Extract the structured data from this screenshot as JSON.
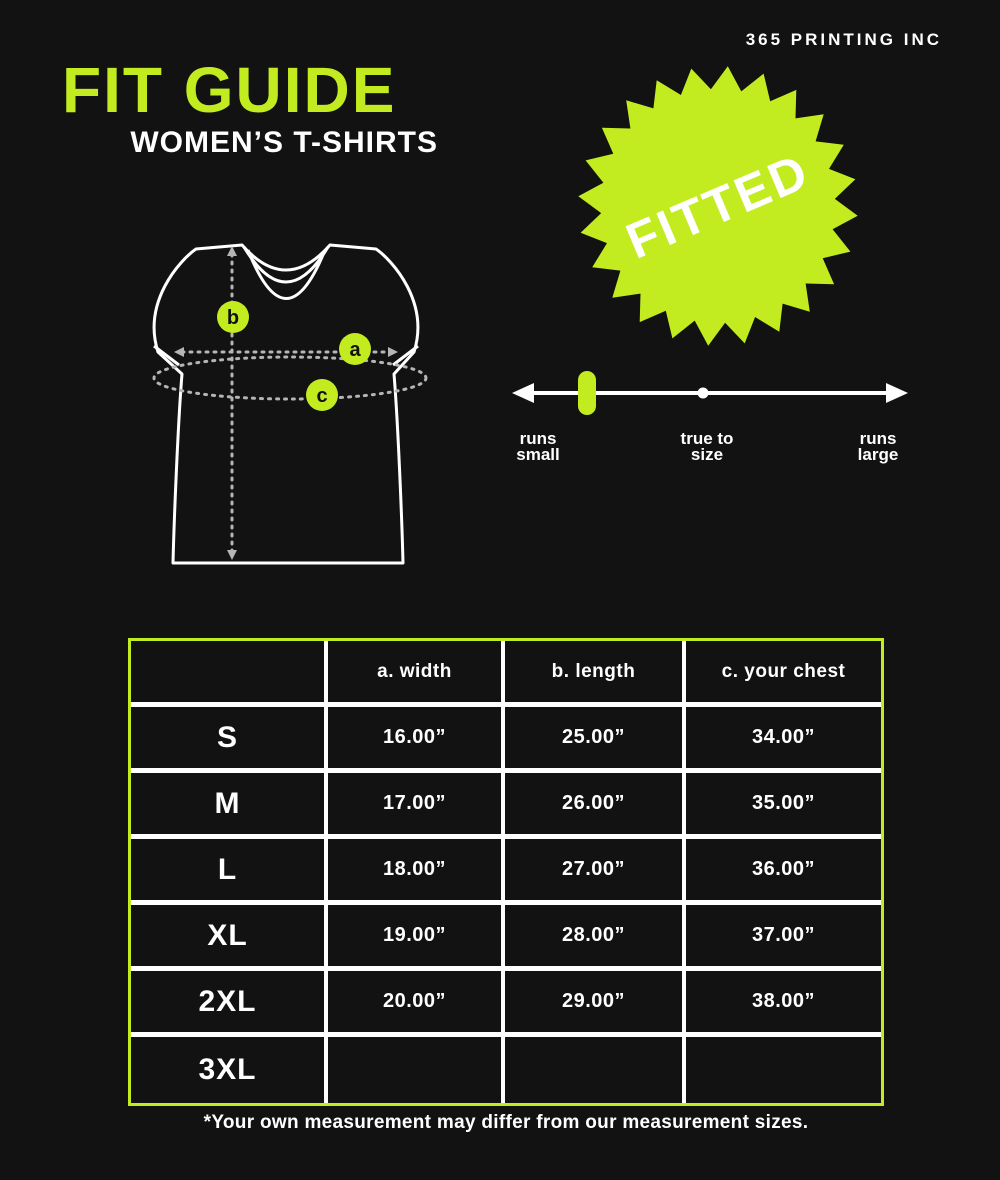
{
  "brand": "365 PRINTING INC",
  "title": {
    "main": "FIT GUIDE",
    "subtitle": "WOMEN’S T-SHIRTS"
  },
  "badge": {
    "label": "FITTED"
  },
  "fit_scale": {
    "labels": [
      {
        "line1": "runs",
        "line2": "small"
      },
      {
        "line1": "true to",
        "line2": "size"
      },
      {
        "line1": "runs",
        "line2": "large"
      }
    ],
    "selected": "runs small"
  },
  "diagram": {
    "markers": [
      {
        "letter": "a"
      },
      {
        "letter": "b"
      },
      {
        "letter": "c"
      }
    ]
  },
  "table": {
    "headers": [
      "",
      "a. width",
      "b. length",
      "c. your chest"
    ],
    "rows": [
      {
        "size": "S",
        "width": "16.00”",
        "length": "25.00”",
        "chest": "34.00”"
      },
      {
        "size": "M",
        "width": "17.00”",
        "length": "26.00”",
        "chest": "35.00”"
      },
      {
        "size": "L",
        "width": "18.00”",
        "length": "27.00”",
        "chest": "36.00”"
      },
      {
        "size": "XL",
        "width": "19.00”",
        "length": "28.00”",
        "chest": "37.00”"
      },
      {
        "size": "2XL",
        "width": "20.00”",
        "length": "29.00”",
        "chest": "38.00”"
      },
      {
        "size": "3XL",
        "width": "",
        "length": "",
        "chest": ""
      }
    ]
  },
  "footnote": "*Your own measurement may differ from our measurement sizes.",
  "colors": {
    "accent": "#c3ec20",
    "background": "#121212",
    "text": "#ffffff"
  }
}
